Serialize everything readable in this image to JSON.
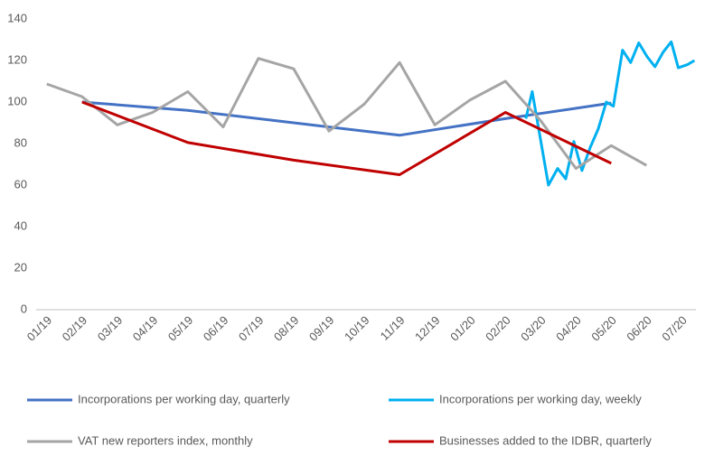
{
  "chart_data": {
    "type": "line",
    "xlim": [
      -0.3,
      18.4
    ],
    "xticks": [
      {
        "value": 0,
        "label": "01/19"
      },
      {
        "value": 1,
        "label": "02/19"
      },
      {
        "value": 2,
        "label": "03/19"
      },
      {
        "value": 3,
        "label": "04/19"
      },
      {
        "value": 4,
        "label": "05/19"
      },
      {
        "value": 5,
        "label": "06/19"
      },
      {
        "value": 6,
        "label": "07/19"
      },
      {
        "value": 7,
        "label": "08/19"
      },
      {
        "value": 8,
        "label": "09/19"
      },
      {
        "value": 9,
        "label": "10/19"
      },
      {
        "value": 10,
        "label": "11/19"
      },
      {
        "value": 11,
        "label": "12/19"
      },
      {
        "value": 12,
        "label": "01/20"
      },
      {
        "value": 13,
        "label": "02/20"
      },
      {
        "value": 14,
        "label": "03/20"
      },
      {
        "value": 15,
        "label": "04/20"
      },
      {
        "value": 16,
        "label": "05/20"
      },
      {
        "value": 17,
        "label": "06/20"
      },
      {
        "value": 18,
        "label": "07/20"
      }
    ],
    "ylim": [
      0,
      140
    ],
    "yticks": [
      0,
      20,
      40,
      60,
      80,
      100,
      120,
      140
    ],
    "grid": false,
    "legend": "bottom",
    "series": [
      {
        "name": "Incorporations per working day, quarterly",
        "color": "#4472c4",
        "x": [
          1,
          4,
          7,
          10,
          13,
          16
        ],
        "values": [
          100,
          96,
          90,
          84,
          92,
          99.5
        ]
      },
      {
        "name": "Incorporations per working day, weekly",
        "color": "#00b0f0",
        "x": [
          13.58,
          13.76,
          14.22,
          14.48,
          14.71,
          14.94,
          15.17,
          15.4,
          15.63,
          15.86,
          16.06,
          16.32,
          16.55,
          16.78,
          17.01,
          17.24,
          17.47,
          17.7,
          17.9,
          18.16,
          18.36
        ],
        "values": [
          92,
          105,
          60,
          68,
          63,
          81,
          67,
          78,
          87,
          100,
          98,
          125,
          119,
          128.5,
          122,
          117,
          124,
          129,
          116.5,
          118,
          120
        ]
      },
      {
        "name": "VAT new reporters index, monthly",
        "color": "#a5a5a5",
        "x": [
          0,
          1,
          2,
          3,
          4,
          5,
          6,
          7,
          8,
          9,
          10,
          11,
          12,
          13,
          14,
          15,
          16,
          17
        ],
        "values": [
          108.7,
          102.6,
          89,
          95,
          105,
          88,
          121,
          116,
          86,
          99,
          119,
          89,
          101,
          110,
          91,
          68,
          79,
          69.5
        ]
      },
      {
        "name": "Businesses added to the IDBR, quarterly",
        "color": "#c00000",
        "x": [
          1,
          4,
          7,
          10,
          13,
          16
        ],
        "values": [
          100,
          80.5,
          72,
          65,
          95,
          70.5
        ]
      }
    ]
  }
}
